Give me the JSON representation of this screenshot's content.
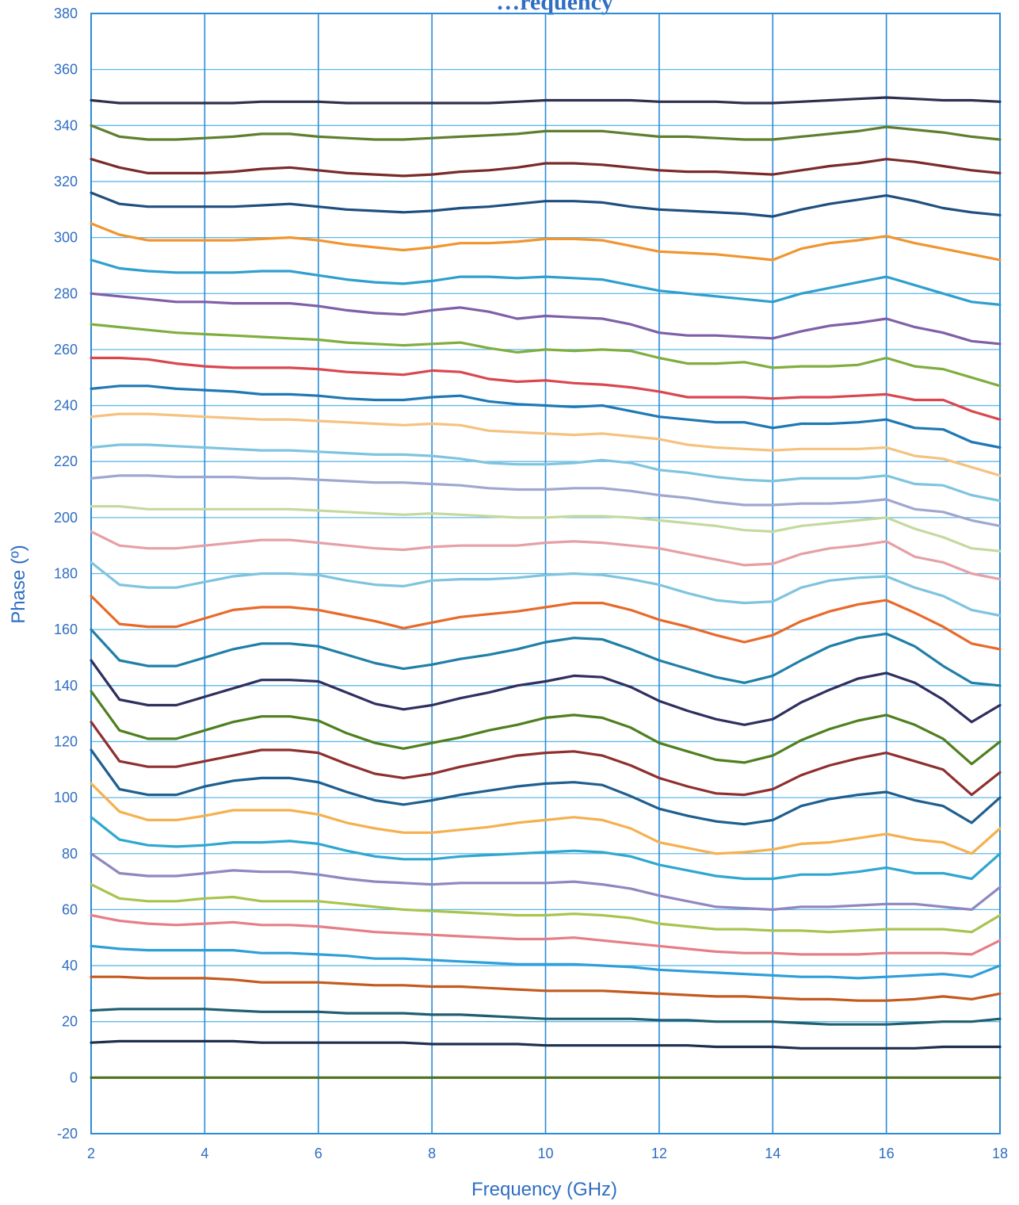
{
  "chart_data": {
    "type": "line",
    "title": "…requency",
    "xlabel": "Frequency (GHz)",
    "ylabel": "Phase (º)",
    "xlim": [
      2,
      18
    ],
    "ylim": [
      -20,
      380
    ],
    "x_ticks": [
      2,
      4,
      6,
      8,
      10,
      12,
      14,
      16,
      18
    ],
    "y_ticks": [
      -20,
      0,
      20,
      40,
      60,
      80,
      100,
      120,
      140,
      160,
      180,
      200,
      220,
      240,
      260,
      280,
      300,
      320,
      340,
      360,
      380
    ],
    "grid": true,
    "legend": "none",
    "x": [
      2,
      2.5,
      3,
      3.5,
      4,
      4.5,
      5,
      5.5,
      6,
      6.5,
      7,
      7.5,
      8,
      8.5,
      9,
      9.5,
      10,
      10.5,
      11,
      11.5,
      12,
      12.5,
      13,
      13.5,
      14,
      14.5,
      15,
      15.5,
      16,
      16.5,
      17,
      17.5,
      18
    ],
    "series": [
      {
        "color": "#2f2f4f",
        "values": [
          349,
          348,
          348,
          348,
          348,
          348,
          348.5,
          348.5,
          348.5,
          348,
          348,
          348,
          348,
          348,
          348,
          348.5,
          349,
          349,
          349,
          349,
          348.5,
          348.5,
          348.5,
          348,
          348,
          348.5,
          349,
          349.5,
          350,
          349.5,
          349,
          349,
          348.5
        ]
      },
      {
        "color": "#5f7f2f",
        "values": [
          340,
          336,
          335,
          335,
          335.5,
          336,
          337,
          337,
          336,
          335.5,
          335,
          335,
          335.5,
          336,
          336.5,
          337,
          338,
          338,
          338,
          337,
          336,
          336,
          335.5,
          335,
          335,
          336,
          337,
          338,
          339.5,
          338.5,
          337.5,
          336,
          335
        ]
      },
      {
        "color": "#7a2a2a",
        "values": [
          328,
          325,
          323,
          323,
          323,
          323.5,
          324.5,
          325,
          324,
          323,
          322.5,
          322,
          322.5,
          323.5,
          324,
          325,
          326.5,
          326.5,
          326,
          325,
          324,
          323.5,
          323.5,
          323,
          322.5,
          324,
          325.5,
          326.5,
          328,
          327,
          325.5,
          324,
          323
        ]
      },
      {
        "color": "#1f4f7f",
        "values": [
          316,
          312,
          311,
          311,
          311,
          311,
          311.5,
          312,
          311,
          310,
          309.5,
          309,
          309.5,
          310.5,
          311,
          312,
          313,
          313,
          312.5,
          311,
          310,
          309.5,
          309,
          308.5,
          307.5,
          310,
          312,
          313.5,
          315,
          313,
          310.5,
          309,
          308
        ]
      },
      {
        "color": "#f0952f",
        "values": [
          305,
          301,
          299,
          299,
          299,
          299,
          299.5,
          300,
          299,
          297.5,
          296.5,
          295.5,
          296.5,
          298,
          298,
          298.5,
          299.5,
          299.5,
          299,
          297,
          295,
          294.5,
          294,
          293,
          292,
          296,
          298,
          299,
          300.5,
          298,
          296,
          294,
          292
        ]
      },
      {
        "color": "#2f9fcf",
        "values": [
          292,
          289,
          288,
          287.5,
          287.5,
          287.5,
          288,
          288,
          286.5,
          285,
          284,
          283.5,
          284.5,
          286,
          286,
          285.5,
          286,
          285.5,
          285,
          283,
          281,
          280,
          279,
          278,
          277,
          280,
          282,
          284,
          286,
          283,
          280,
          277,
          276
        ]
      },
      {
        "color": "#7f5fa7",
        "values": [
          280,
          279,
          278,
          277,
          277,
          276.5,
          276.5,
          276.5,
          275.5,
          274,
          273,
          272.5,
          274,
          275,
          273.5,
          271,
          272,
          271.5,
          271,
          269,
          266,
          265,
          265,
          264.5,
          264,
          266.5,
          268.5,
          269.5,
          271,
          268,
          266,
          263,
          262
        ]
      },
      {
        "color": "#7fae3f",
        "values": [
          269,
          268,
          267,
          266,
          265.5,
          265,
          264.5,
          264,
          263.5,
          262.5,
          262,
          261.5,
          262,
          262.5,
          260.5,
          259,
          260,
          259.5,
          260,
          259.5,
          257,
          255,
          255,
          255.5,
          253.5,
          254,
          254,
          254.5,
          257,
          254,
          253,
          250,
          247
        ]
      },
      {
        "color": "#d9474f",
        "values": [
          257,
          257,
          256.5,
          255,
          254,
          253.5,
          253.5,
          253.5,
          253,
          252,
          251.5,
          251,
          252.5,
          252,
          249.5,
          248.5,
          249,
          248,
          247.5,
          246.5,
          245,
          243,
          243,
          243,
          242.5,
          243,
          243,
          243.5,
          244,
          242,
          242,
          238,
          235
        ]
      },
      {
        "color": "#1f78b4",
        "values": [
          246,
          247,
          247,
          246,
          245.5,
          245,
          244,
          244,
          243.5,
          242.5,
          242,
          242,
          243,
          243.5,
          241.5,
          240.5,
          240,
          239.5,
          240,
          238,
          236,
          235,
          234,
          234,
          232,
          233.5,
          233.5,
          234,
          235,
          232,
          231.5,
          227,
          225
        ]
      },
      {
        "color": "#f5c27f",
        "values": [
          236,
          237,
          237,
          236.5,
          236,
          235.5,
          235,
          235,
          234.5,
          234,
          233.5,
          233,
          233.5,
          233,
          231,
          230.5,
          230,
          229.5,
          230,
          229,
          228,
          226,
          225,
          224.5,
          224,
          224.5,
          224.5,
          224.5,
          225,
          222,
          221,
          218,
          215
        ]
      },
      {
        "color": "#7fc4df",
        "values": [
          225,
          226,
          226,
          225.5,
          225,
          224.5,
          224,
          224,
          223.5,
          223,
          222.5,
          222.5,
          222,
          221,
          219.5,
          219,
          219,
          219.5,
          220.5,
          219.5,
          217,
          216,
          214.5,
          213.5,
          213,
          214,
          214,
          214,
          215,
          212,
          211.5,
          208,
          206
        ]
      },
      {
        "color": "#9fa7cf",
        "values": [
          214,
          215,
          215,
          214.5,
          214.5,
          214.5,
          214,
          214,
          213.5,
          213,
          212.5,
          212.5,
          212,
          211.5,
          210.5,
          210,
          210,
          210.5,
          210.5,
          209.5,
          208,
          207,
          205.5,
          204.5,
          204.5,
          205,
          205,
          205.5,
          206.5,
          203,
          202,
          199,
          197
        ]
      },
      {
        "color": "#c4d99f",
        "values": [
          204,
          204,
          203,
          203,
          203,
          203,
          203,
          203,
          202.5,
          202,
          201.5,
          201,
          201.5,
          201,
          200.5,
          200,
          200,
          200.5,
          200.5,
          200,
          199,
          198,
          197,
          195.5,
          195,
          197,
          198,
          199,
          200,
          196,
          193,
          189,
          188
        ]
      },
      {
        "color": "#e5a0a5",
        "values": [
          195,
          190,
          189,
          189,
          190,
          191,
          192,
          192,
          191,
          190,
          189,
          188.5,
          189.5,
          190,
          190,
          190,
          191,
          191.5,
          191,
          190,
          189,
          187,
          185,
          183,
          183.5,
          187,
          189,
          190,
          191.5,
          186,
          184,
          180,
          178
        ]
      },
      {
        "color": "#7fc4df",
        "values": [
          184,
          176,
          175,
          175,
          177,
          179,
          180,
          180,
          179.5,
          177.5,
          176,
          175.5,
          177.5,
          178,
          178,
          178.5,
          179.5,
          180,
          179.5,
          178,
          176,
          173,
          170.5,
          169.5,
          170,
          175,
          177.5,
          178.5,
          179,
          175,
          172,
          167,
          165
        ]
      },
      {
        "color": "#e86a2a",
        "values": [
          172,
          162,
          161,
          161,
          164,
          167,
          168,
          168,
          167,
          165,
          163,
          160.5,
          162.5,
          164.5,
          165.5,
          166.5,
          168,
          169.5,
          169.5,
          167,
          163.5,
          161,
          158,
          155.5,
          158,
          163,
          166.5,
          169,
          170.5,
          166,
          161,
          155,
          153
        ]
      },
      {
        "color": "#1f7fa7",
        "values": [
          160,
          149,
          147,
          147,
          150,
          153,
          155,
          155,
          154,
          151,
          148,
          146,
          147.5,
          149.5,
          151,
          153,
          155.5,
          157,
          156.5,
          153,
          149,
          146,
          143,
          141,
          143.5,
          149,
          154,
          157,
          158.5,
          154,
          147,
          141,
          140
        ]
      },
      {
        "color": "#2f2f5f",
        "values": [
          149,
          135,
          133,
          133,
          136,
          139,
          142,
          142,
          141.5,
          137.5,
          133.5,
          131.5,
          133,
          135.5,
          137.5,
          140,
          141.5,
          143.5,
          143,
          139.5,
          134.5,
          131,
          128,
          126,
          128,
          134,
          138.5,
          142.5,
          144.5,
          141,
          135,
          127,
          133
        ]
      },
      {
        "color": "#4f7f1f",
        "values": [
          138,
          124,
          121,
          121,
          124,
          127,
          129,
          129,
          127.5,
          123,
          119.5,
          117.5,
          119.5,
          121.5,
          124,
          126,
          128.5,
          129.5,
          128.5,
          125,
          119.5,
          116.5,
          113.5,
          112.5,
          115,
          120.5,
          124.5,
          127.5,
          129.5,
          126,
          121,
          112,
          120
        ]
      },
      {
        "color": "#8f2f2f",
        "values": [
          127,
          113,
          111,
          111,
          113,
          115,
          117,
          117,
          116,
          112,
          108.5,
          107,
          108.5,
          111,
          113,
          115,
          116,
          116.5,
          115,
          111.5,
          107,
          104,
          101.5,
          101,
          103,
          108,
          111.5,
          114,
          116,
          113,
          110,
          101,
          109
        ]
      },
      {
        "color": "#1f5f8f",
        "values": [
          117,
          103,
          101,
          101,
          104,
          106,
          107,
          107,
          105.5,
          102,
          99,
          97.5,
          99,
          101,
          102.5,
          104,
          105,
          105.5,
          104.5,
          100.5,
          96,
          93.5,
          91.5,
          90.5,
          92,
          97,
          99.5,
          101,
          102,
          99,
          97,
          91,
          100
        ]
      },
      {
        "color": "#f5b04f",
        "values": [
          105,
          95,
          92,
          92,
          93.5,
          95.5,
          95.5,
          95.5,
          94,
          91,
          89,
          87.5,
          87.5,
          88.5,
          89.5,
          91,
          92,
          93,
          92,
          89,
          84,
          82,
          80,
          80.5,
          81.5,
          83.5,
          84,
          85.5,
          87,
          85,
          84,
          80,
          89
        ]
      },
      {
        "color": "#2fa7cf",
        "values": [
          93,
          85,
          83,
          82.5,
          83,
          84,
          84,
          84.5,
          83.5,
          81,
          79,
          78,
          78,
          79,
          79.5,
          80,
          80.5,
          81,
          80.5,
          79,
          76,
          74,
          72,
          71,
          71,
          72.5,
          72.5,
          73.5,
          75,
          73,
          73,
          71,
          80
        ]
      },
      {
        "color": "#8f87bf",
        "values": [
          80,
          73,
          72,
          72,
          73,
          74,
          73.5,
          73.5,
          72.5,
          71,
          70,
          69.5,
          69,
          69.5,
          69.5,
          69.5,
          69.5,
          70,
          69,
          67.5,
          65,
          63,
          61,
          60.5,
          60,
          61,
          61,
          61.5,
          62,
          62,
          61,
          60,
          68
        ]
      },
      {
        "color": "#a7c44f",
        "values": [
          69,
          64,
          63,
          63,
          64,
          64.5,
          63,
          63,
          63,
          62,
          61,
          60,
          59.5,
          59,
          58.5,
          58,
          58,
          58.5,
          58,
          57,
          55,
          54,
          53,
          53,
          52.5,
          52.5,
          52,
          52.5,
          53,
          53,
          53,
          52,
          58
        ]
      },
      {
        "color": "#e57f87",
        "values": [
          58,
          56,
          55,
          54.5,
          55,
          55.5,
          54.5,
          54.5,
          54,
          53,
          52,
          51.5,
          51,
          50.5,
          50,
          49.5,
          49.5,
          50,
          49,
          48,
          47,
          46,
          45,
          44.5,
          44.5,
          44,
          44,
          44,
          44.5,
          44.5,
          44.5,
          44,
          49
        ]
      },
      {
        "color": "#2f9fd9",
        "values": [
          47,
          46,
          45.5,
          45.5,
          45.5,
          45.5,
          44.5,
          44.5,
          44,
          43.5,
          42.5,
          42.5,
          42,
          41.5,
          41,
          40.5,
          40.5,
          40.5,
          40,
          39.5,
          38.5,
          38,
          37.5,
          37,
          36.5,
          36,
          36,
          35.5,
          36,
          36.5,
          37,
          36,
          40
        ]
      },
      {
        "color": "#c45a1f",
        "values": [
          36,
          36,
          35.5,
          35.5,
          35.5,
          35,
          34,
          34,
          34,
          33.5,
          33,
          33,
          32.5,
          32.5,
          32,
          31.5,
          31,
          31,
          31,
          30.5,
          30,
          29.5,
          29,
          29,
          28.5,
          28,
          28,
          27.5,
          27.5,
          28,
          29,
          28,
          30
        ]
      },
      {
        "color": "#1f5f6f",
        "values": [
          24,
          24.5,
          24.5,
          24.5,
          24.5,
          24,
          23.5,
          23.5,
          23.5,
          23,
          23,
          23,
          22.5,
          22.5,
          22,
          21.5,
          21,
          21,
          21,
          21,
          20.5,
          20.5,
          20,
          20,
          20,
          19.5,
          19,
          19,
          19,
          19.5,
          20,
          20,
          21
        ]
      },
      {
        "color": "#1f2f4f",
        "values": [
          12.5,
          13,
          13,
          13,
          13,
          13,
          12.5,
          12.5,
          12.5,
          12.5,
          12.5,
          12.5,
          12,
          12,
          12,
          12,
          11.5,
          11.5,
          11.5,
          11.5,
          11.5,
          11.5,
          11,
          11,
          11,
          10.5,
          10.5,
          10.5,
          10.5,
          10.5,
          11,
          11,
          11
        ]
      },
      {
        "color": "#4f6f1f",
        "values": [
          0,
          0,
          0,
          0,
          0,
          0,
          0,
          0,
          0,
          0,
          0,
          0,
          0,
          0,
          0,
          0,
          0,
          0,
          0,
          0,
          0,
          0,
          0,
          0,
          0,
          0,
          0,
          0,
          0,
          0,
          0,
          0,
          0
        ]
      }
    ]
  }
}
